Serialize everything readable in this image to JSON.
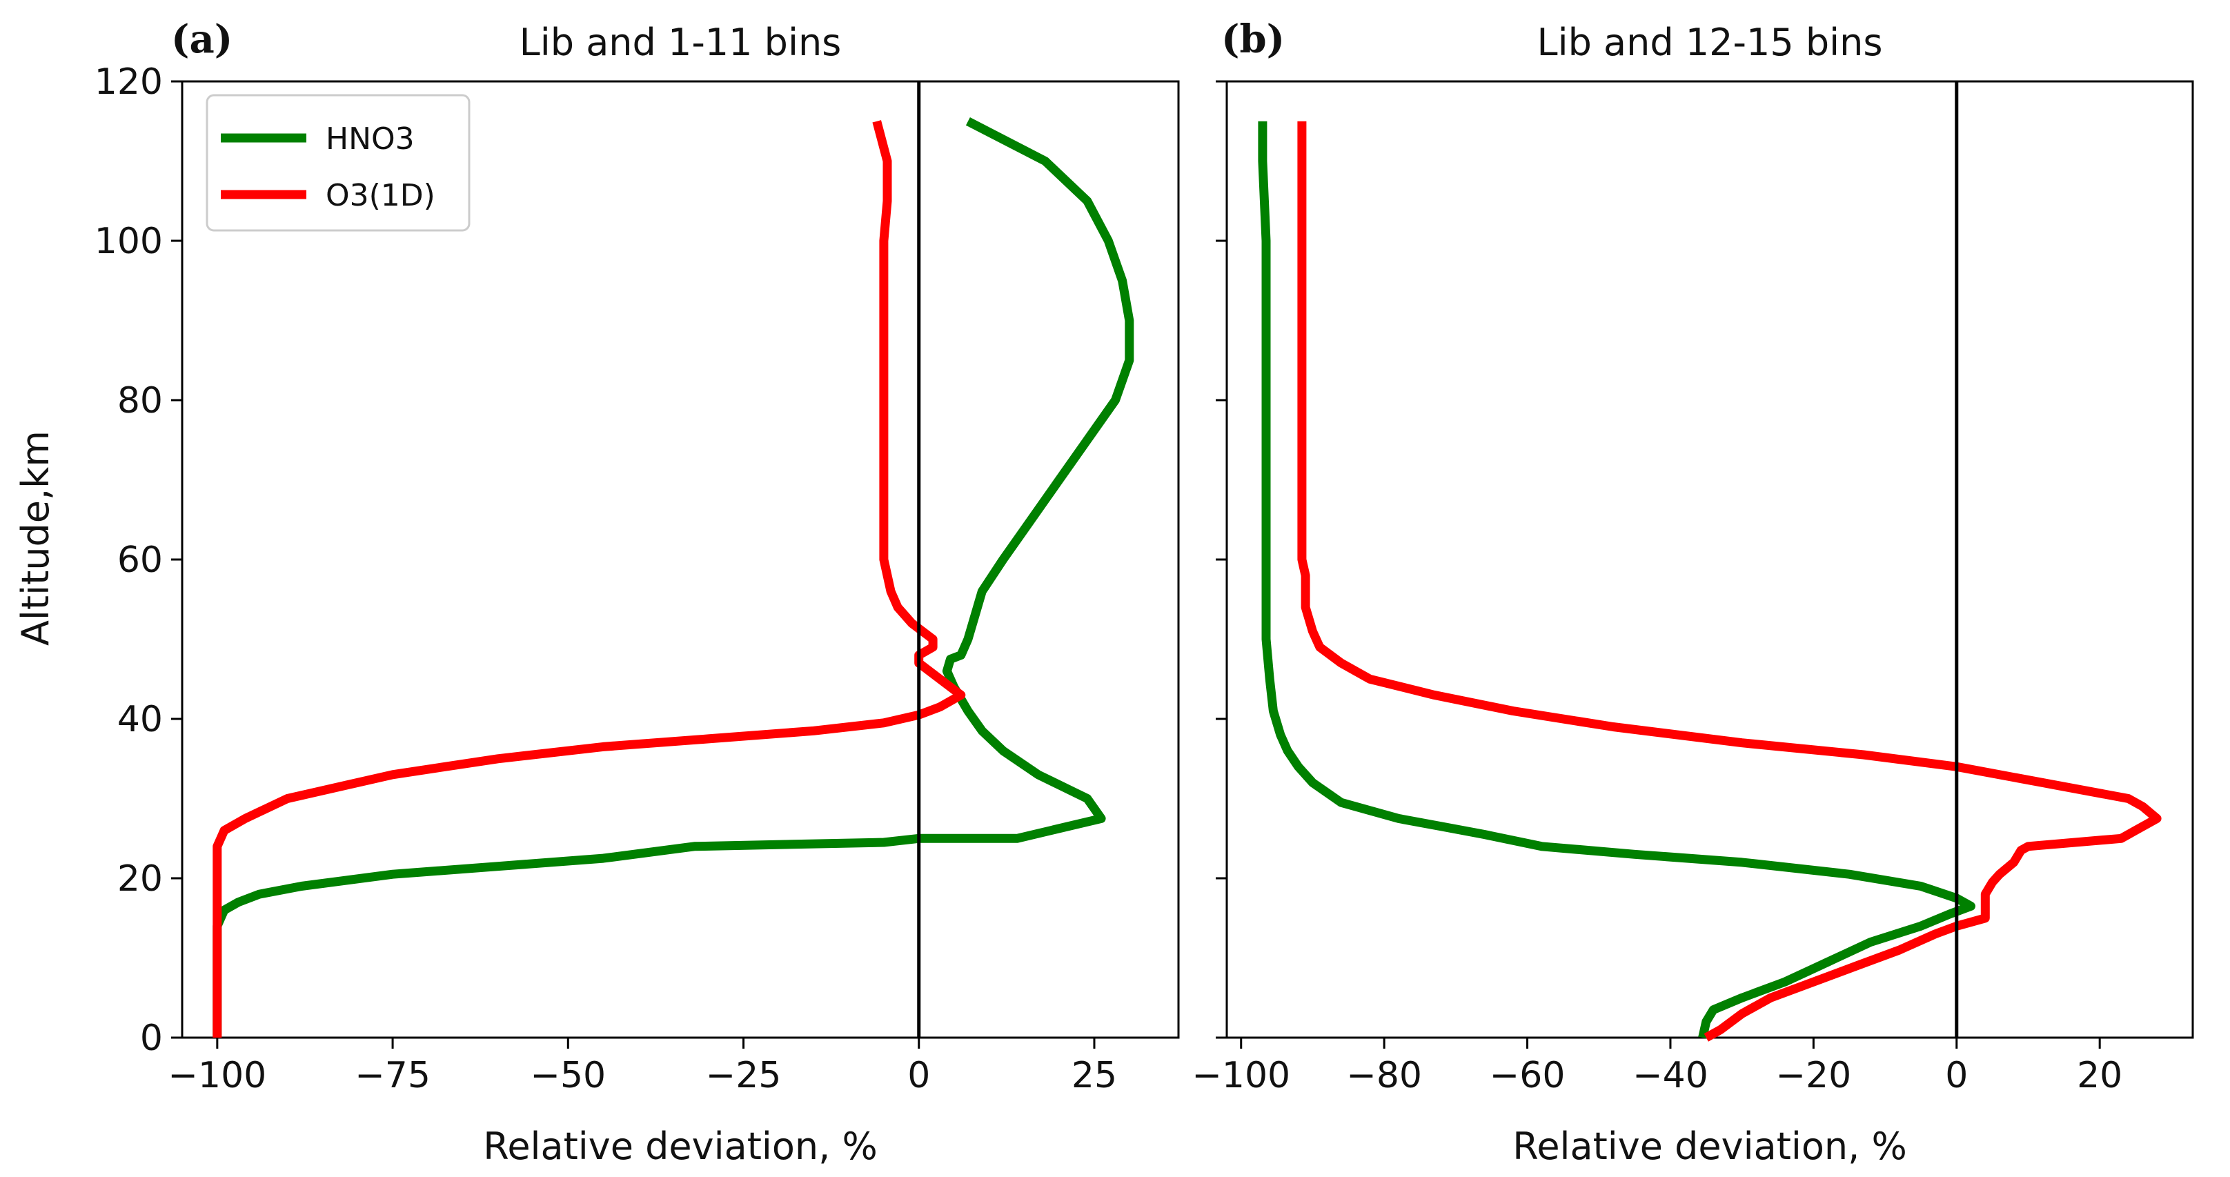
{
  "chart_data": [
    {
      "type": "line",
      "panel_label": "(a)",
      "title": "Lib and 1-11 bins",
      "xlabel": "Relative deviation, %",
      "ylabel": "Altitude,km",
      "xlim": [
        -105,
        37
      ],
      "ylim": [
        0,
        120
      ],
      "xticks": [
        -100,
        -75,
        -50,
        -25,
        0,
        25
      ],
      "xtick_labels": [
        "−100",
        "−75",
        "−50",
        "−25",
        "0",
        "25"
      ],
      "yticks": [
        0,
        20,
        40,
        60,
        80,
        100,
        120
      ],
      "ytick_labels": [
        "0",
        "20",
        "40",
        "60",
        "80",
        "100",
        "120"
      ],
      "reference_line_x": 0,
      "legend": {
        "location": "top-left",
        "entries": [
          "HNO3",
          "O3(1D)"
        ]
      },
      "series": [
        {
          "name": "HNO3",
          "color": "#008000",
          "points": [
            [
              -100,
              0
            ],
            [
              -100,
              5
            ],
            [
              -100,
              10
            ],
            [
              -100,
              14
            ],
            [
              -99,
              16
            ],
            [
              -97,
              17
            ],
            [
              -94,
              18
            ],
            [
              -88,
              19
            ],
            [
              -75,
              20.5
            ],
            [
              -60,
              21.5
            ],
            [
              -45,
              22.5
            ],
            [
              -32,
              24
            ],
            [
              -5,
              24.5
            ],
            [
              0,
              25
            ],
            [
              14,
              25
            ],
            [
              26,
              27.5
            ],
            [
              24,
              30
            ],
            [
              17,
              33
            ],
            [
              12,
              36
            ],
            [
              9,
              38.5
            ],
            [
              7,
              41
            ],
            [
              5,
              44
            ],
            [
              4,
              46
            ],
            [
              4.5,
              47.5
            ],
            [
              6,
              48
            ],
            [
              7,
              50
            ],
            [
              8,
              53
            ],
            [
              9,
              56
            ],
            [
              12,
              60
            ],
            [
              16,
              65
            ],
            [
              20,
              70
            ],
            [
              24,
              75
            ],
            [
              28,
              80
            ],
            [
              30,
              85
            ],
            [
              30,
              90
            ],
            [
              29,
              95
            ],
            [
              27,
              100
            ],
            [
              24,
              105
            ],
            [
              18,
              110
            ],
            [
              7,
              115
            ]
          ]
        },
        {
          "name": "O3(1D)",
          "color": "#ff0000",
          "points": [
            [
              -100,
              0
            ],
            [
              -100,
              5
            ],
            [
              -100,
              10
            ],
            [
              -100,
              15
            ],
            [
              -100,
              20
            ],
            [
              -100,
              24
            ],
            [
              -99,
              26
            ],
            [
              -96,
              27.5
            ],
            [
              -90,
              30
            ],
            [
              -75,
              33
            ],
            [
              -60,
              35
            ],
            [
              -45,
              36.5
            ],
            [
              -30,
              37.5
            ],
            [
              -15,
              38.5
            ],
            [
              -5,
              39.5
            ],
            [
              0,
              40.5
            ],
            [
              3,
              41.5
            ],
            [
              6,
              43
            ],
            [
              3,
              45
            ],
            [
              0,
              47
            ],
            [
              0,
              48
            ],
            [
              2,
              49
            ],
            [
              2,
              50
            ],
            [
              -1,
              52
            ],
            [
              -3,
              54
            ],
            [
              -4,
              56
            ],
            [
              -5,
              60
            ],
            [
              -5,
              65
            ],
            [
              -5,
              70
            ],
            [
              -5,
              75
            ],
            [
              -5,
              80
            ],
            [
              -5,
              90
            ],
            [
              -5,
              100
            ],
            [
              -4.5,
              105
            ],
            [
              -4.5,
              110
            ],
            [
              -6,
              115
            ]
          ]
        }
      ]
    },
    {
      "type": "line",
      "panel_label": "(b)",
      "title": "Lib and 12-15 bins",
      "xlabel": "Relative deviation, %",
      "ylabel": "",
      "xlim": [
        -102,
        33
      ],
      "ylim": [
        0,
        120
      ],
      "xticks": [
        -100,
        -80,
        -60,
        -40,
        -20,
        0,
        20
      ],
      "xtick_labels": [
        "−100",
        "−80",
        "−60",
        "−40",
        "−20",
        "0",
        "20"
      ],
      "yticks": [
        0,
        20,
        40,
        60,
        80,
        100,
        120
      ],
      "ytick_labels": [],
      "reference_line_x": 0,
      "series": [
        {
          "name": "HNO3",
          "color": "#008000",
          "points": [
            [
              -35.5,
              0
            ],
            [
              -35,
              2
            ],
            [
              -34,
              3.5
            ],
            [
              -30,
              5
            ],
            [
              -24,
              7
            ],
            [
              -18,
              9.5
            ],
            [
              -12,
              12
            ],
            [
              -5,
              14
            ],
            [
              -1,
              15.5
            ],
            [
              2,
              16.5
            ],
            [
              0,
              17.5
            ],
            [
              -5,
              19
            ],
            [
              -15,
              20.5
            ],
            [
              -30,
              22
            ],
            [
              -45,
              23
            ],
            [
              -58,
              24
            ],
            [
              -66,
              25.5
            ],
            [
              -72,
              26.5
            ],
            [
              -78,
              27.5
            ],
            [
              -86,
              29.5
            ],
            [
              -90,
              32
            ],
            [
              -92,
              34
            ],
            [
              -93.5,
              36
            ],
            [
              -94.5,
              38
            ],
            [
              -95.5,
              41
            ],
            [
              -96,
              45
            ],
            [
              -96.5,
              50
            ],
            [
              -96.5,
              55
            ],
            [
              -96.5,
              60
            ],
            [
              -96.5,
              70
            ],
            [
              -96.5,
              80
            ],
            [
              -96.5,
              90
            ],
            [
              -96.5,
              100
            ],
            [
              -97,
              110
            ],
            [
              -97,
              115
            ]
          ]
        },
        {
          "name": "O3(1D)",
          "color": "#ff0000",
          "points": [
            [
              -35,
              0
            ],
            [
              -33,
              1
            ],
            [
              -30,
              3
            ],
            [
              -26,
              5
            ],
            [
              -20,
              7
            ],
            [
              -14,
              9
            ],
            [
              -8,
              11
            ],
            [
              -3,
              13
            ],
            [
              0,
              14
            ],
            [
              4,
              15
            ],
            [
              4,
              16
            ],
            [
              4,
              17
            ],
            [
              4,
              18
            ],
            [
              5,
              19.5
            ],
            [
              6,
              20.5
            ],
            [
              8,
              22
            ],
            [
              9,
              23.5
            ],
            [
              10,
              24
            ],
            [
              23,
              25
            ],
            [
              25,
              26
            ],
            [
              28,
              27.5
            ],
            [
              26,
              29
            ],
            [
              24,
              30
            ],
            [
              12,
              32
            ],
            [
              0,
              34
            ],
            [
              -13,
              35.5
            ],
            [
              -30,
              37
            ],
            [
              -48,
              39
            ],
            [
              -62,
              41
            ],
            [
              -73,
              43
            ],
            [
              -82,
              45
            ],
            [
              -86,
              47
            ],
            [
              -89,
              49
            ],
            [
              -90,
              51
            ],
            [
              -91,
              54
            ],
            [
              -91,
              58
            ],
            [
              -91.5,
              60
            ],
            [
              -91.5,
              70
            ],
            [
              -91.5,
              80
            ],
            [
              -91.5,
              90
            ],
            [
              -91.5,
              100
            ],
            [
              -91.5,
              110
            ],
            [
              -91.5,
              115
            ]
          ]
        }
      ]
    }
  ]
}
